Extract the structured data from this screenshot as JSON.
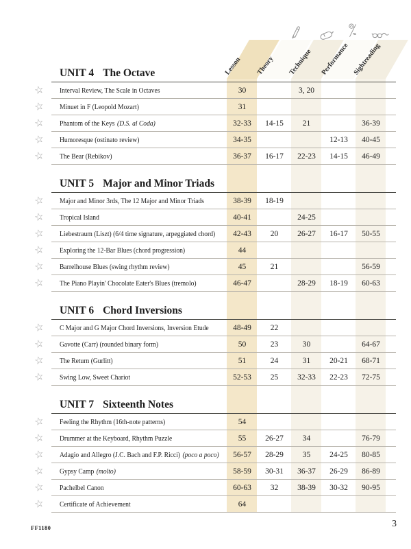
{
  "columns": [
    {
      "label": "Lesson",
      "icon": ""
    },
    {
      "label": "Theory",
      "icon": "pencil-icon"
    },
    {
      "label": "Technique",
      "icon": "mouse-icon"
    },
    {
      "label": "Performance",
      "icon": "flower-icon"
    },
    {
      "label": "Sightreading",
      "icon": "glasses-icon"
    }
  ],
  "units": [
    {
      "label": "UNIT 4",
      "title": "The Octave",
      "rows": [
        {
          "title": "Interval Review, The Scale in Octaves",
          "italic": "",
          "lesson": "30",
          "theory": "",
          "technique": "3, 20",
          "performance": "",
          "sightreading": ""
        },
        {
          "title": "Minuet in F (Leopold Mozart)",
          "italic": "",
          "lesson": "31",
          "theory": "",
          "technique": "",
          "performance": "",
          "sightreading": ""
        },
        {
          "title": "Phantom of the Keys",
          "italic": "(D.S. al Coda)",
          "lesson": "32-33",
          "theory": "14-15",
          "technique": "21",
          "performance": "",
          "sightreading": "36-39"
        },
        {
          "title": "Humoresque (ostinato review)",
          "italic": "",
          "lesson": "34-35",
          "theory": "",
          "technique": "",
          "performance": "12-13",
          "sightreading": "40-45"
        },
        {
          "title": "The Bear (Rebikov)",
          "italic": "",
          "lesson": "36-37",
          "theory": "16-17",
          "technique": "22-23",
          "performance": "14-15",
          "sightreading": "46-49"
        }
      ]
    },
    {
      "label": "UNIT 5",
      "title": "Major and Minor Triads",
      "rows": [
        {
          "title": "Major and Minor 3rds, The 12 Major and Minor Triads",
          "italic": "",
          "lesson": "38-39",
          "theory": "18-19",
          "technique": "",
          "performance": "",
          "sightreading": ""
        },
        {
          "title": "Tropical Island",
          "italic": "",
          "lesson": "40-41",
          "theory": "",
          "technique": "24-25",
          "performance": "",
          "sightreading": ""
        },
        {
          "title": "Liebestraum (Liszt) (6/4 time signature, arpeggiated chord)",
          "italic": "",
          "lesson": "42-43",
          "theory": "20",
          "technique": "26-27",
          "performance": "16-17",
          "sightreading": "50-55"
        },
        {
          "title": "Exploring the 12-Bar Blues (chord progression)",
          "italic": "",
          "lesson": "44",
          "theory": "",
          "technique": "",
          "performance": "",
          "sightreading": ""
        },
        {
          "title": "Barrelhouse Blues (swing rhythm review)",
          "italic": "",
          "lesson": "45",
          "theory": "21",
          "technique": "",
          "performance": "",
          "sightreading": "56-59"
        },
        {
          "title": "The Piano Playin' Chocolate Eater's Blues (tremolo)",
          "italic": "",
          "lesson": "46-47",
          "theory": "",
          "technique": "28-29",
          "performance": "18-19",
          "sightreading": "60-63"
        }
      ]
    },
    {
      "label": "UNIT 6",
      "title": "Chord Inversions",
      "rows": [
        {
          "title": "C Major and G Major Chord Inversions, Inversion Etude",
          "italic": "",
          "lesson": "48-49",
          "theory": "22",
          "technique": "",
          "performance": "",
          "sightreading": ""
        },
        {
          "title": "Gavotte (Carr) (rounded binary form)",
          "italic": "",
          "lesson": "50",
          "theory": "23",
          "technique": "30",
          "performance": "",
          "sightreading": "64-67"
        },
        {
          "title": "The Return (Gurlitt)",
          "italic": "",
          "lesson": "51",
          "theory": "24",
          "technique": "31",
          "performance": "20-21",
          "sightreading": "68-71"
        },
        {
          "title": "Swing Low, Sweet Chariot",
          "italic": "",
          "lesson": "52-53",
          "theory": "25",
          "technique": "32-33",
          "performance": "22-23",
          "sightreading": "72-75"
        }
      ]
    },
    {
      "label": "UNIT 7",
      "title": "Sixteenth Notes",
      "rows": [
        {
          "title": "Feeling the Rhythm (16th-note patterns)",
          "italic": "",
          "lesson": "54",
          "theory": "",
          "technique": "",
          "performance": "",
          "sightreading": ""
        },
        {
          "title": "Drummer at the Keyboard, Rhythm Puzzle",
          "italic": "",
          "lesson": "55",
          "theory": "26-27",
          "technique": "34",
          "performance": "",
          "sightreading": "76-79"
        },
        {
          "title": "Adagio and Allegro (J.C. Bach and F.P. Ricci)",
          "italic": "(poco a poco)",
          "lesson": "56-57",
          "theory": "28-29",
          "technique": "35",
          "performance": "24-25",
          "sightreading": "80-85"
        },
        {
          "title": "Gypsy Camp",
          "italic": "(molto)",
          "lesson": "58-59",
          "theory": "30-31",
          "technique": "36-37",
          "performance": "26-29",
          "sightreading": "86-89"
        },
        {
          "title": "Pachelbel Canon",
          "italic": "",
          "lesson": "60-63",
          "theory": "32",
          "technique": "38-39",
          "performance": "30-32",
          "sightreading": "90-95"
        },
        {
          "title": "Certificate of Achievement",
          "italic": "",
          "lesson": "64",
          "theory": "",
          "technique": "",
          "performance": "",
          "sightreading": ""
        }
      ]
    }
  ],
  "footer": {
    "catalog": "FF1180",
    "page": "3"
  },
  "colors": {
    "lesson_band": "#f4e7c9",
    "lesson_band_head": "#f0e1bd",
    "accent_band": "#f6f2e8",
    "accent_band_head": "#f3eee1",
    "faint_band_head": "#fcfbf7",
    "rule_dark": "#4a4a45",
    "rule_light": "#b6b2aa",
    "text": "#1c1c1c",
    "icon": "#8d8d8d"
  }
}
